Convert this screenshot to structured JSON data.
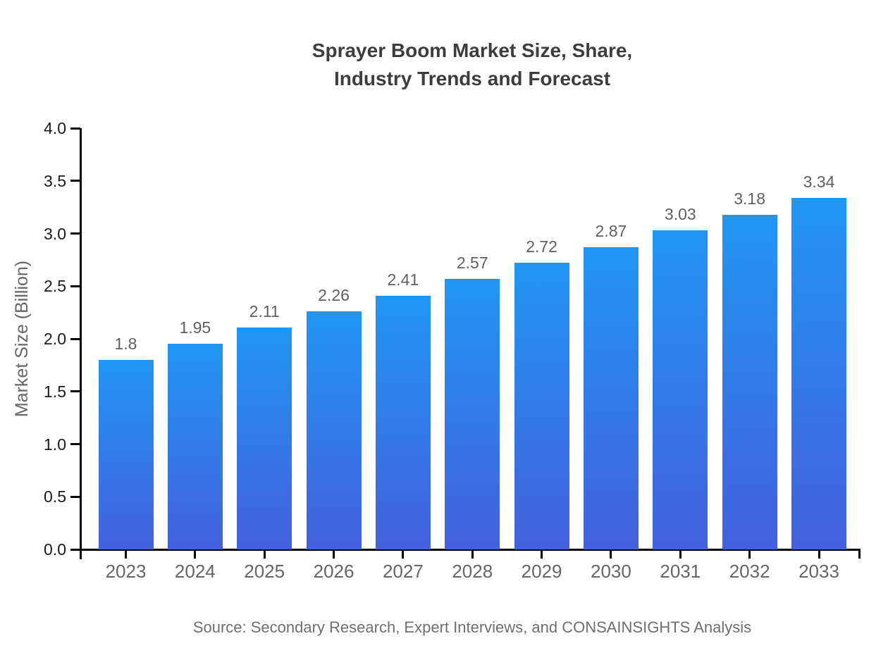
{
  "figure": {
    "source": "Source: Secondary Research, Expert Interviews, and CONSAINSIGHTS Analysis"
  },
  "chart_data": {
    "type": "bar",
    "title": "Sprayer Boom Market Size, Share,\nIndustry Trends and Forecast",
    "categories": [
      "2023",
      "2024",
      "2025",
      "2026",
      "2027",
      "2028",
      "2029",
      "2030",
      "2031",
      "2032",
      "2033"
    ],
    "values": [
      1.8,
      1.95,
      2.11,
      2.26,
      2.41,
      2.57,
      2.72,
      2.87,
      3.03,
      3.18,
      3.34
    ],
    "value_labels": [
      "1.8",
      "1.95",
      "2.11",
      "2.26",
      "2.41",
      "2.57",
      "2.72",
      "2.87",
      "3.03",
      "3.18",
      "3.34"
    ],
    "xlabel": "",
    "ylabel": "Market Size (Billion)",
    "ylim": [
      0.0,
      4.0
    ],
    "ytick_labels": [
      "0.0",
      "0.5",
      "1.0",
      "1.5",
      "2.0",
      "2.5",
      "3.0",
      "3.5",
      "4.0"
    ],
    "grid": false,
    "legend": false,
    "colors": {
      "bar_gradient_top": "#2196f3",
      "bar_gradient_bottom": "#4460dd",
      "axis": "#000000",
      "ytick_label": "#1a1a1a",
      "xtick_label": "#666666",
      "value_label": "#5f5f5f",
      "title": "#3d3d3d",
      "axis_title": "#666666",
      "source": "#6e6e6e"
    }
  }
}
